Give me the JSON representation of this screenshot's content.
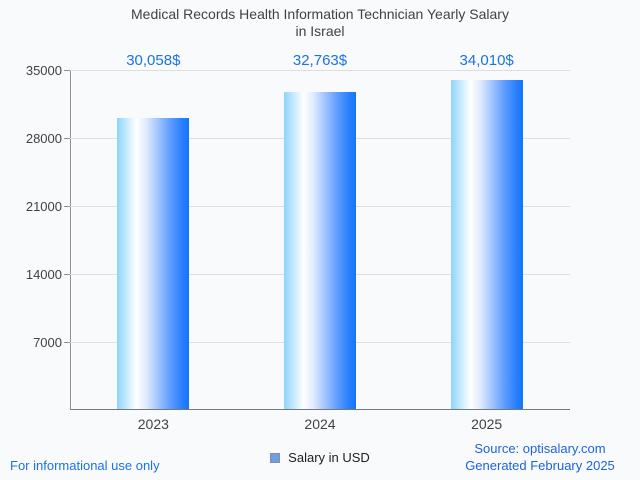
{
  "title_lines": [
    "Medical Records Health Information Technician Yearly Salary",
    "in Israel"
  ],
  "chart_data": {
    "type": "bar",
    "title": "Medical Records Health Information Technician Yearly Salary in Israel",
    "categories": [
      "2023",
      "2024",
      "2025"
    ],
    "values": [
      30058,
      32763,
      34010
    ],
    "value_labels": [
      "30,058$",
      "32,763$",
      "34,010$"
    ],
    "series_name": "Salary in USD",
    "xlabel": "",
    "ylabel": "",
    "ylim": [
      0,
      35000
    ],
    "yticks": [
      7000,
      14000,
      21000,
      28000,
      35000
    ],
    "grid": true,
    "legend_position": "bottom",
    "bar_gradient": [
      "#8ed4fb",
      "#ffffff",
      "#1574fd"
    ],
    "value_label_color": "#1a73e8"
  },
  "legend": {
    "label": "Salary in USD",
    "swatch_color": "#6d9eea"
  },
  "footer": {
    "disclaimer": "For informational use only",
    "source": "Source: optisalary.com",
    "generated": "Generated February 2025",
    "link_color": "#1a73e8"
  }
}
